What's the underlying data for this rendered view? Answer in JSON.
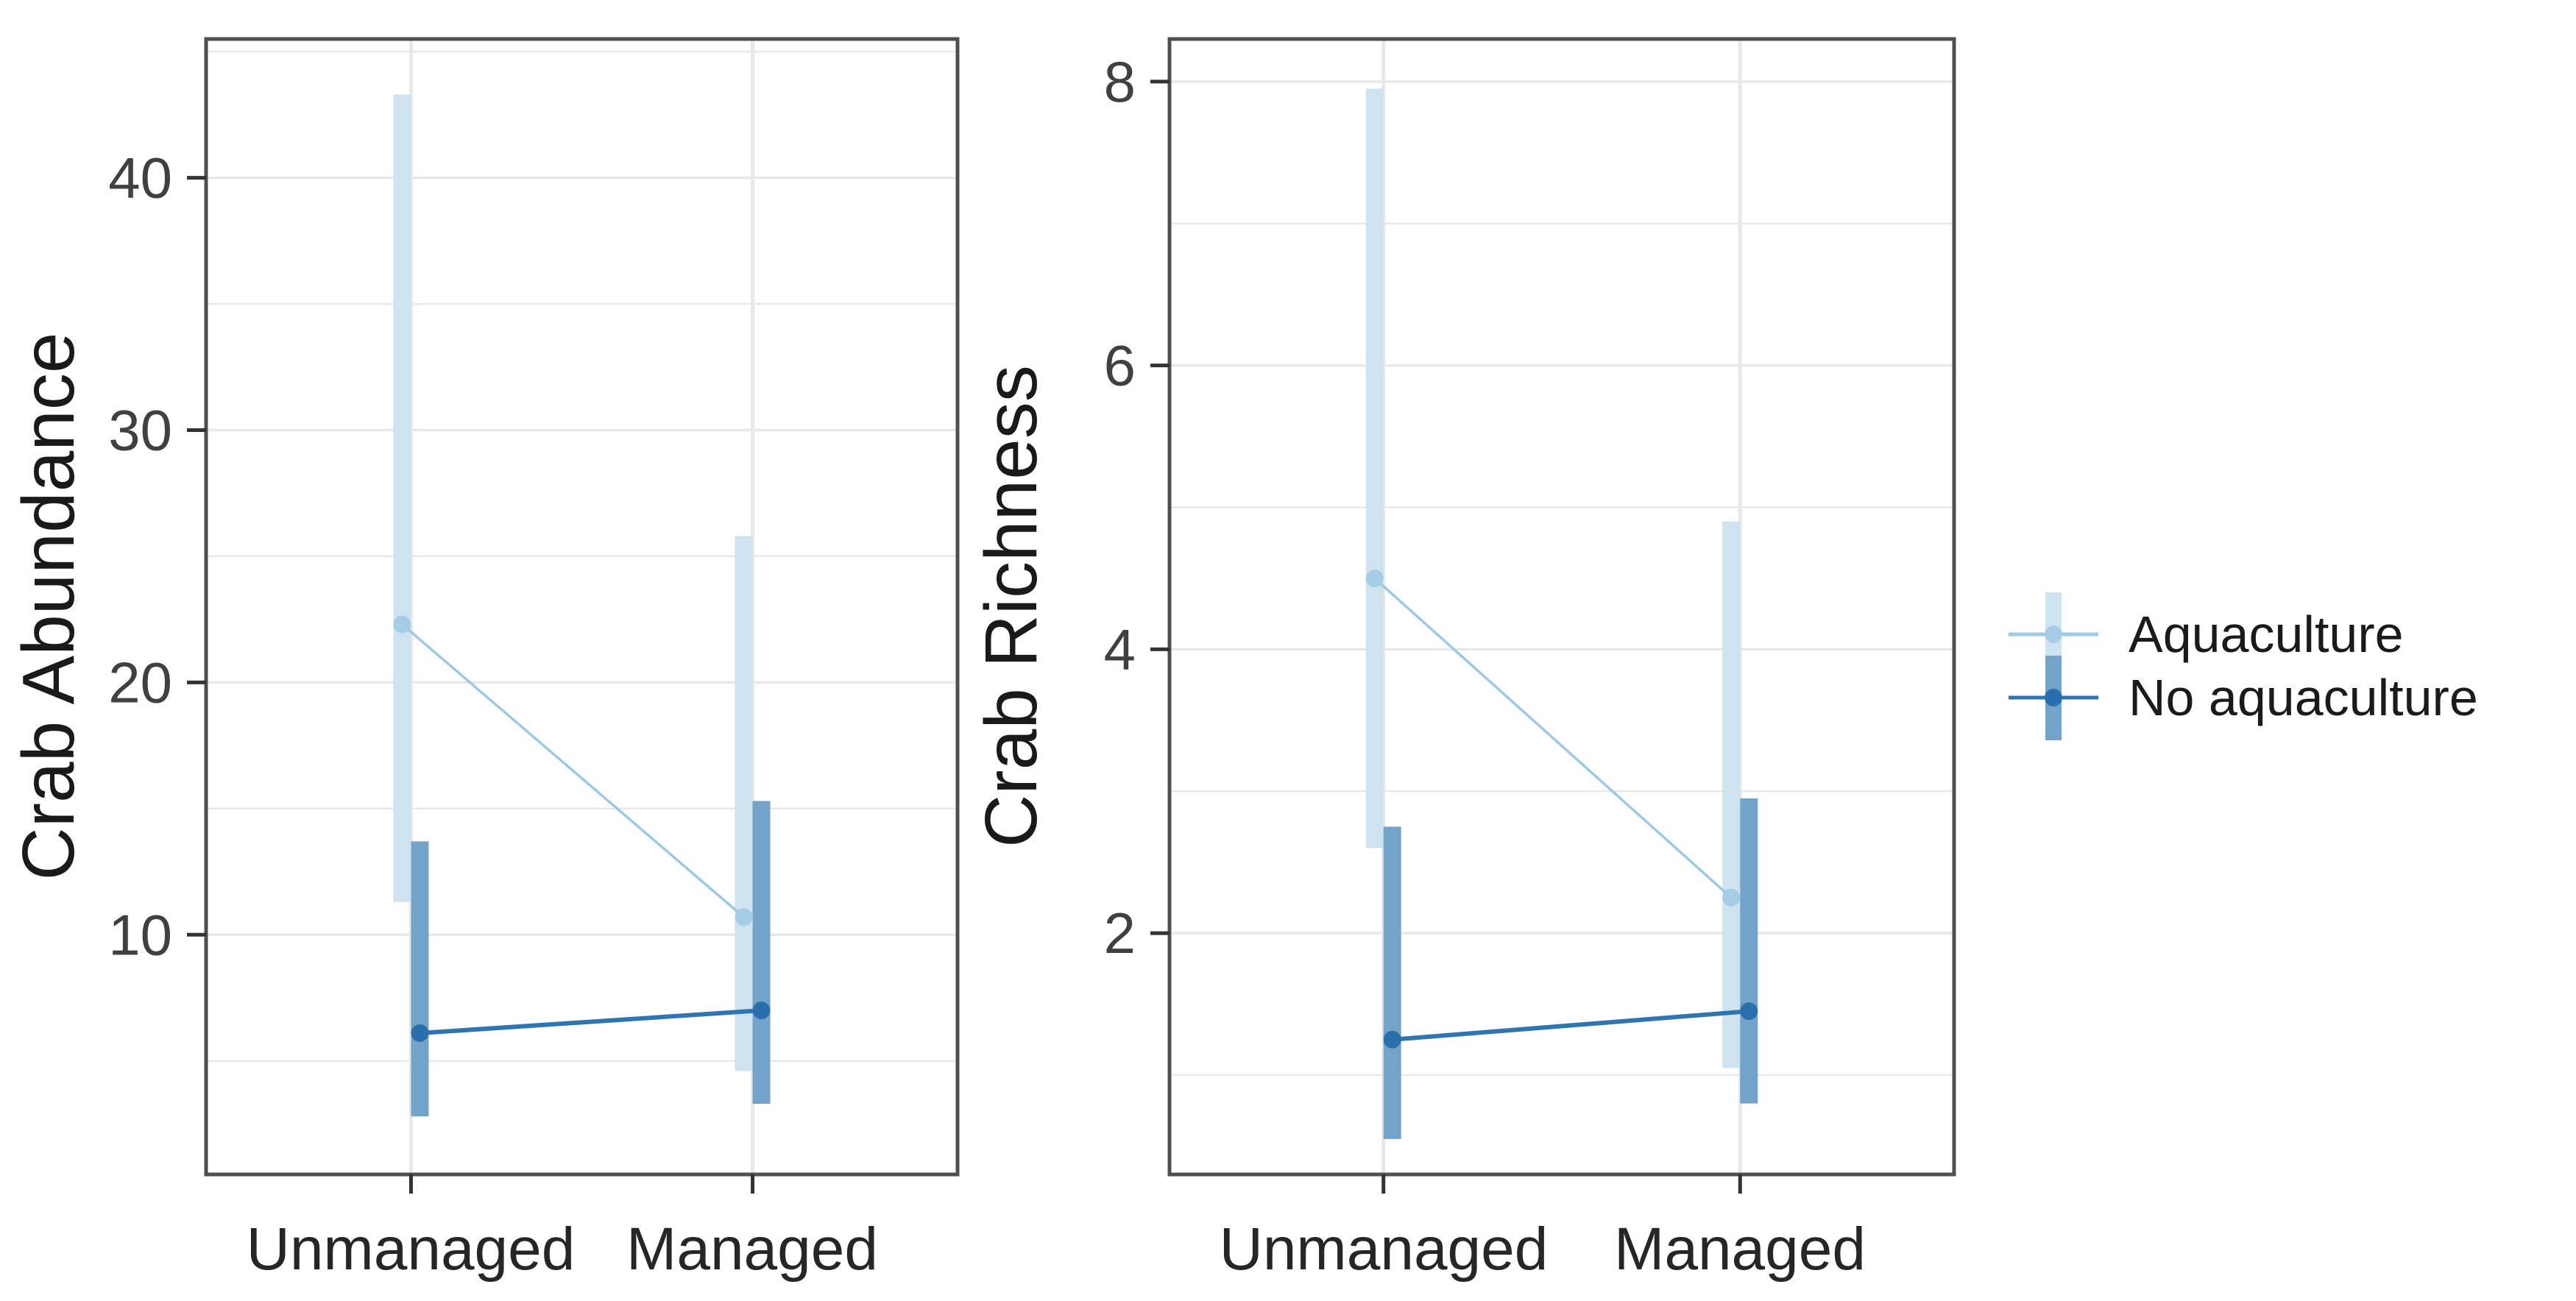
{
  "figure": {
    "background": "#ffffff",
    "categories": [
      "Unmanaged",
      "Managed"
    ],
    "legend": {
      "items": [
        {
          "label": "Aquaculture",
          "bar_color": "#cfe2f0",
          "line_color": "#9ec9e2",
          "point_color": "#a5cde5"
        },
        {
          "label": "No aquaculture",
          "bar_color": "#74a3ca",
          "line_color": "#2f75b2",
          "point_color": "#2a6fad"
        }
      ]
    },
    "style": {
      "grid_color": "#e8e8e8",
      "border_color": "#4f4f4f",
      "tick_color": "#333333",
      "tick_label_color": "#404040"
    }
  },
  "chart_data": [
    {
      "type": "pointrange",
      "title": "",
      "xlabel": "",
      "ylabel": "Crab Abundance",
      "categories": [
        "Unmanaged",
        "Managed"
      ],
      "ylim": [
        0.5,
        45.5
      ],
      "yticks": [
        10,
        20,
        30,
        40
      ],
      "minor_gridlines": [
        5,
        15,
        25,
        35,
        45
      ],
      "grid": true,
      "legend_position": "right",
      "series": [
        {
          "name": "Aquaculture",
          "means": [
            22.3,
            10.7
          ],
          "ci_low": [
            11.3,
            4.6
          ],
          "ci_high": [
            43.3,
            25.8
          ]
        },
        {
          "name": "No aquaculture",
          "means": [
            6.1,
            7.0
          ],
          "ci_low": [
            2.8,
            3.3
          ],
          "ci_high": [
            13.7,
            15.3
          ]
        }
      ]
    },
    {
      "type": "pointrange",
      "title": "",
      "xlabel": "",
      "ylabel": "Crab Richness",
      "categories": [
        "Unmanaged",
        "Managed"
      ],
      "ylim": [
        0.3,
        8.3
      ],
      "yticks": [
        2,
        4,
        6,
        8
      ],
      "minor_gridlines": [
        1,
        3,
        5,
        7
      ],
      "grid": true,
      "legend_position": "right",
      "series": [
        {
          "name": "Aquaculture",
          "means": [
            4.5,
            2.25
          ],
          "ci_low": [
            2.6,
            1.05
          ],
          "ci_high": [
            7.95,
            4.9
          ]
        },
        {
          "name": "No aquaculture",
          "means": [
            1.25,
            1.45
          ],
          "ci_low": [
            0.55,
            0.8
          ],
          "ci_high": [
            2.75,
            2.95
          ]
        }
      ]
    }
  ]
}
